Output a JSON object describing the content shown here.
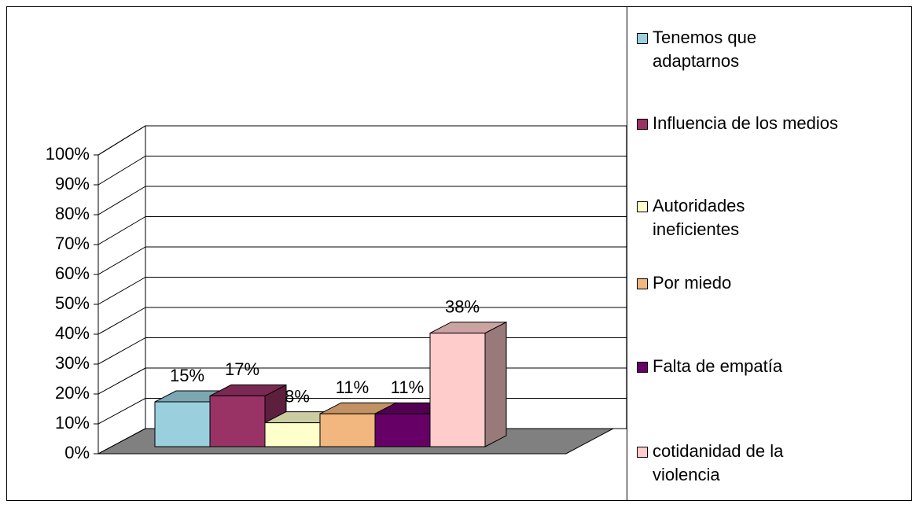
{
  "chart_data": {
    "type": "bar3d",
    "series": [
      {
        "name": "Tenemos que adaptarnos",
        "color": "#9ad0de",
        "values": [
          15
        ],
        "value_labels": [
          "15%"
        ]
      },
      {
        "name": "Influencia de los medios",
        "color": "#993366",
        "values": [
          17
        ],
        "value_labels": [
          "17%"
        ]
      },
      {
        "name": "Autoridades ineficientes",
        "color": "#ffffcc",
        "values": [
          8
        ],
        "value_labels": [
          "8%"
        ]
      },
      {
        "name": "Por miedo",
        "color": "#f2b77e",
        "values": [
          11
        ],
        "value_labels": [
          "11%"
        ]
      },
      {
        "name": "Falta de empatía",
        "color": "#660066",
        "values": [
          11
        ],
        "value_labels": [
          "11%"
        ]
      },
      {
        "name": "cotidanidad de la violencia",
        "color": "#ffcccc",
        "values": [
          38
        ],
        "value_labels": [
          "38%"
        ]
      }
    ],
    "ylim": [
      0,
      100
    ],
    "yticks": [
      {
        "value": 0,
        "label": "0%"
      },
      {
        "value": 10,
        "label": "10%"
      },
      {
        "value": 20,
        "label": "20%"
      },
      {
        "value": 30,
        "label": "30%"
      },
      {
        "value": 40,
        "label": "40%"
      },
      {
        "value": 50,
        "label": "50%"
      },
      {
        "value": 60,
        "label": "60%"
      },
      {
        "value": 70,
        "label": "70%"
      },
      {
        "value": 80,
        "label": "80%"
      },
      {
        "value": 90,
        "label": "90%"
      },
      {
        "value": 100,
        "label": "100%"
      }
    ],
    "grid": true,
    "legend": "right"
  }
}
